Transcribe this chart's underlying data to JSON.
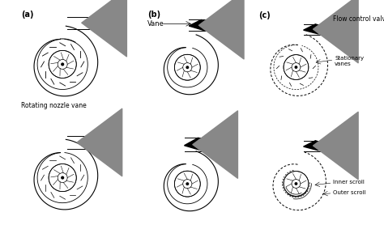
{
  "bg_color": "#ffffff",
  "line_color": "#000000",
  "gray_color": "#808080",
  "light_gray": "#aaaaaa",
  "dark_gray": "#555555",
  "labels": {
    "a": "(a)",
    "b": "(b)",
    "c": "(c)",
    "rotating_nozzle": "Rotating nozzle vane",
    "vane": "Vane",
    "flow_control": "Flow control valve",
    "stationary_vanes": "Stationary\nvanes",
    "inner_scroll": "Inner scroll",
    "outer_scroll": "Outer scroll"
  }
}
